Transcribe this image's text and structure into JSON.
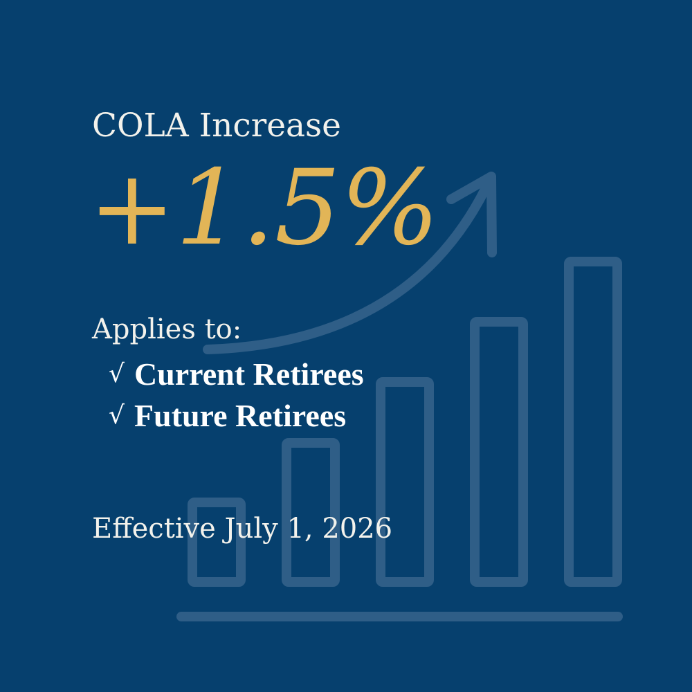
{
  "heading": "COLA Increase",
  "highlight_value": "+1.5%",
  "applies": {
    "label": "Applies to:",
    "check_icon": "√",
    "items": [
      {
        "label": "Current Retirees"
      },
      {
        "label": "Future Retirees"
      }
    ]
  },
  "effective": "Effective July 1, 2026",
  "colors": {
    "background": "#06406e",
    "accent": "#e2b557",
    "text": "#f3f2ec",
    "decoration": "#2f5e87"
  },
  "background_graphic": {
    "icon": "bar-chart-growth-icon",
    "arrow_icon": "trend-up-arrow-icon",
    "bar_count": 5
  }
}
